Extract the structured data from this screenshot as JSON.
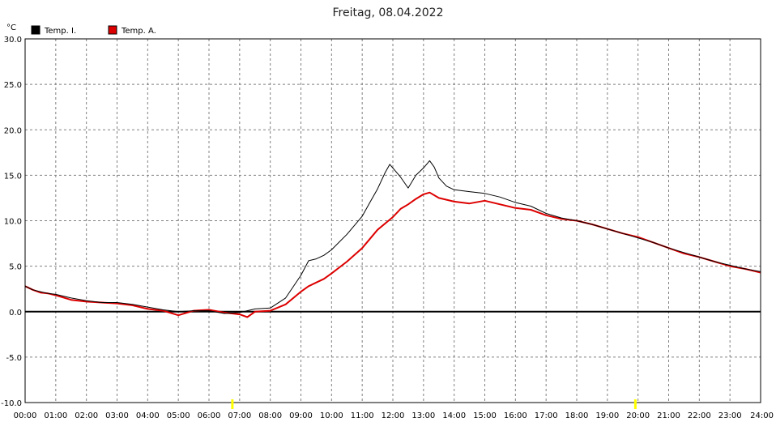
{
  "chart_data": {
    "type": "line",
    "title": "Freitag, 08.04.2022",
    "ylabel": "°C",
    "xlabel": "",
    "ylim": [
      -10,
      30
    ],
    "xlim": [
      0,
      24
    ],
    "grid": true,
    "legend_position": "top-left",
    "y_ticks": [
      "30.0",
      "25.0",
      "20.0",
      "15.0",
      "10.0",
      "5.0",
      "0.0",
      "-5.0",
      "-10.0"
    ],
    "x_ticks": [
      "00:00",
      "01:00",
      "02:00",
      "03:00",
      "04:00",
      "05:00",
      "06:00",
      "07:00",
      "08:00",
      "09:00",
      "10:00",
      "11:00",
      "12:00",
      "13:00",
      "14:00",
      "15:00",
      "16:00",
      "17:00",
      "18:00",
      "19:00",
      "20:00",
      "21:00",
      "22:00",
      "23:00",
      "24:00"
    ],
    "markers": [
      6.75,
      19.9
    ],
    "colors": {
      "temp_i": "#000000",
      "temp_a": "#dd0000",
      "marker": "#ffff00",
      "grid": "#808080"
    },
    "series": [
      {
        "name": "Temp. I.",
        "color": "#000000",
        "x": [
          0,
          0.25,
          0.5,
          0.75,
          1,
          1.5,
          2,
          2.5,
          3,
          3.5,
          4,
          4.5,
          5,
          5.5,
          6,
          6.5,
          7,
          7.5,
          8,
          8.5,
          9,
          9.25,
          9.5,
          9.75,
          10,
          10.5,
          11,
          11.25,
          11.5,
          11.75,
          11.9,
          12,
          12.25,
          12.5,
          12.75,
          13,
          13.2,
          13.35,
          13.5,
          13.75,
          14,
          14.5,
          15,
          15.5,
          16,
          16.5,
          17,
          17.5,
          18,
          18.5,
          19,
          19.5,
          20,
          20.5,
          21,
          21.5,
          22,
          22.5,
          23,
          23.5,
          24
        ],
        "values": [
          2.8,
          2.4,
          2.2,
          2.0,
          1.9,
          1.5,
          1.2,
          1.0,
          1.0,
          0.8,
          0.5,
          0.2,
          0.0,
          0.1,
          0.1,
          -0.2,
          -0.1,
          0.3,
          0.4,
          1.5,
          4.0,
          5.6,
          5.8,
          6.2,
          6.8,
          8.5,
          10.5,
          12.0,
          13.5,
          15.3,
          16.2,
          15.8,
          14.8,
          13.6,
          15.0,
          15.8,
          16.6,
          15.9,
          14.7,
          13.8,
          13.4,
          13.2,
          13.0,
          12.6,
          12.0,
          11.6,
          10.8,
          10.3,
          10.0,
          9.6,
          9.1,
          8.6,
          8.1,
          7.6,
          7.0,
          6.5,
          6.0,
          5.5,
          5.1,
          4.7,
          4.4
        ]
      },
      {
        "name": "Temp. A.",
        "color": "#dd0000",
        "x": [
          0,
          0.25,
          0.5,
          0.75,
          1,
          1.5,
          2,
          2.5,
          3,
          3.5,
          4,
          4.5,
          5,
          5.5,
          6,
          6.5,
          7,
          7.25,
          7.5,
          8,
          8.5,
          9,
          9.25,
          9.5,
          9.75,
          10,
          10.5,
          11,
          11.5,
          12,
          12.25,
          12.5,
          12.75,
          13,
          13.2,
          13.5,
          14,
          14.5,
          15,
          15.5,
          16,
          16.5,
          17,
          17.5,
          18,
          18.5,
          19,
          19.5,
          20,
          20.5,
          21,
          21.5,
          22,
          22.5,
          23,
          23.5,
          24
        ],
        "values": [
          2.8,
          2.4,
          2.1,
          2.0,
          1.8,
          1.3,
          1.1,
          1.0,
          0.9,
          0.7,
          0.3,
          0.1,
          -0.4,
          0.1,
          0.2,
          -0.1,
          -0.3,
          -0.6,
          0.0,
          0.1,
          0.8,
          2.2,
          2.8,
          3.2,
          3.6,
          4.2,
          5.5,
          7.0,
          9.0,
          10.4,
          11.3,
          11.8,
          12.4,
          12.9,
          13.1,
          12.5,
          12.1,
          11.9,
          12.2,
          11.8,
          11.4,
          11.2,
          10.6,
          10.2,
          10.0,
          9.6,
          9.1,
          8.6,
          8.2,
          7.6,
          7.0,
          6.4,
          6.0,
          5.5,
          5.0,
          4.7,
          4.3
        ]
      }
    ]
  }
}
